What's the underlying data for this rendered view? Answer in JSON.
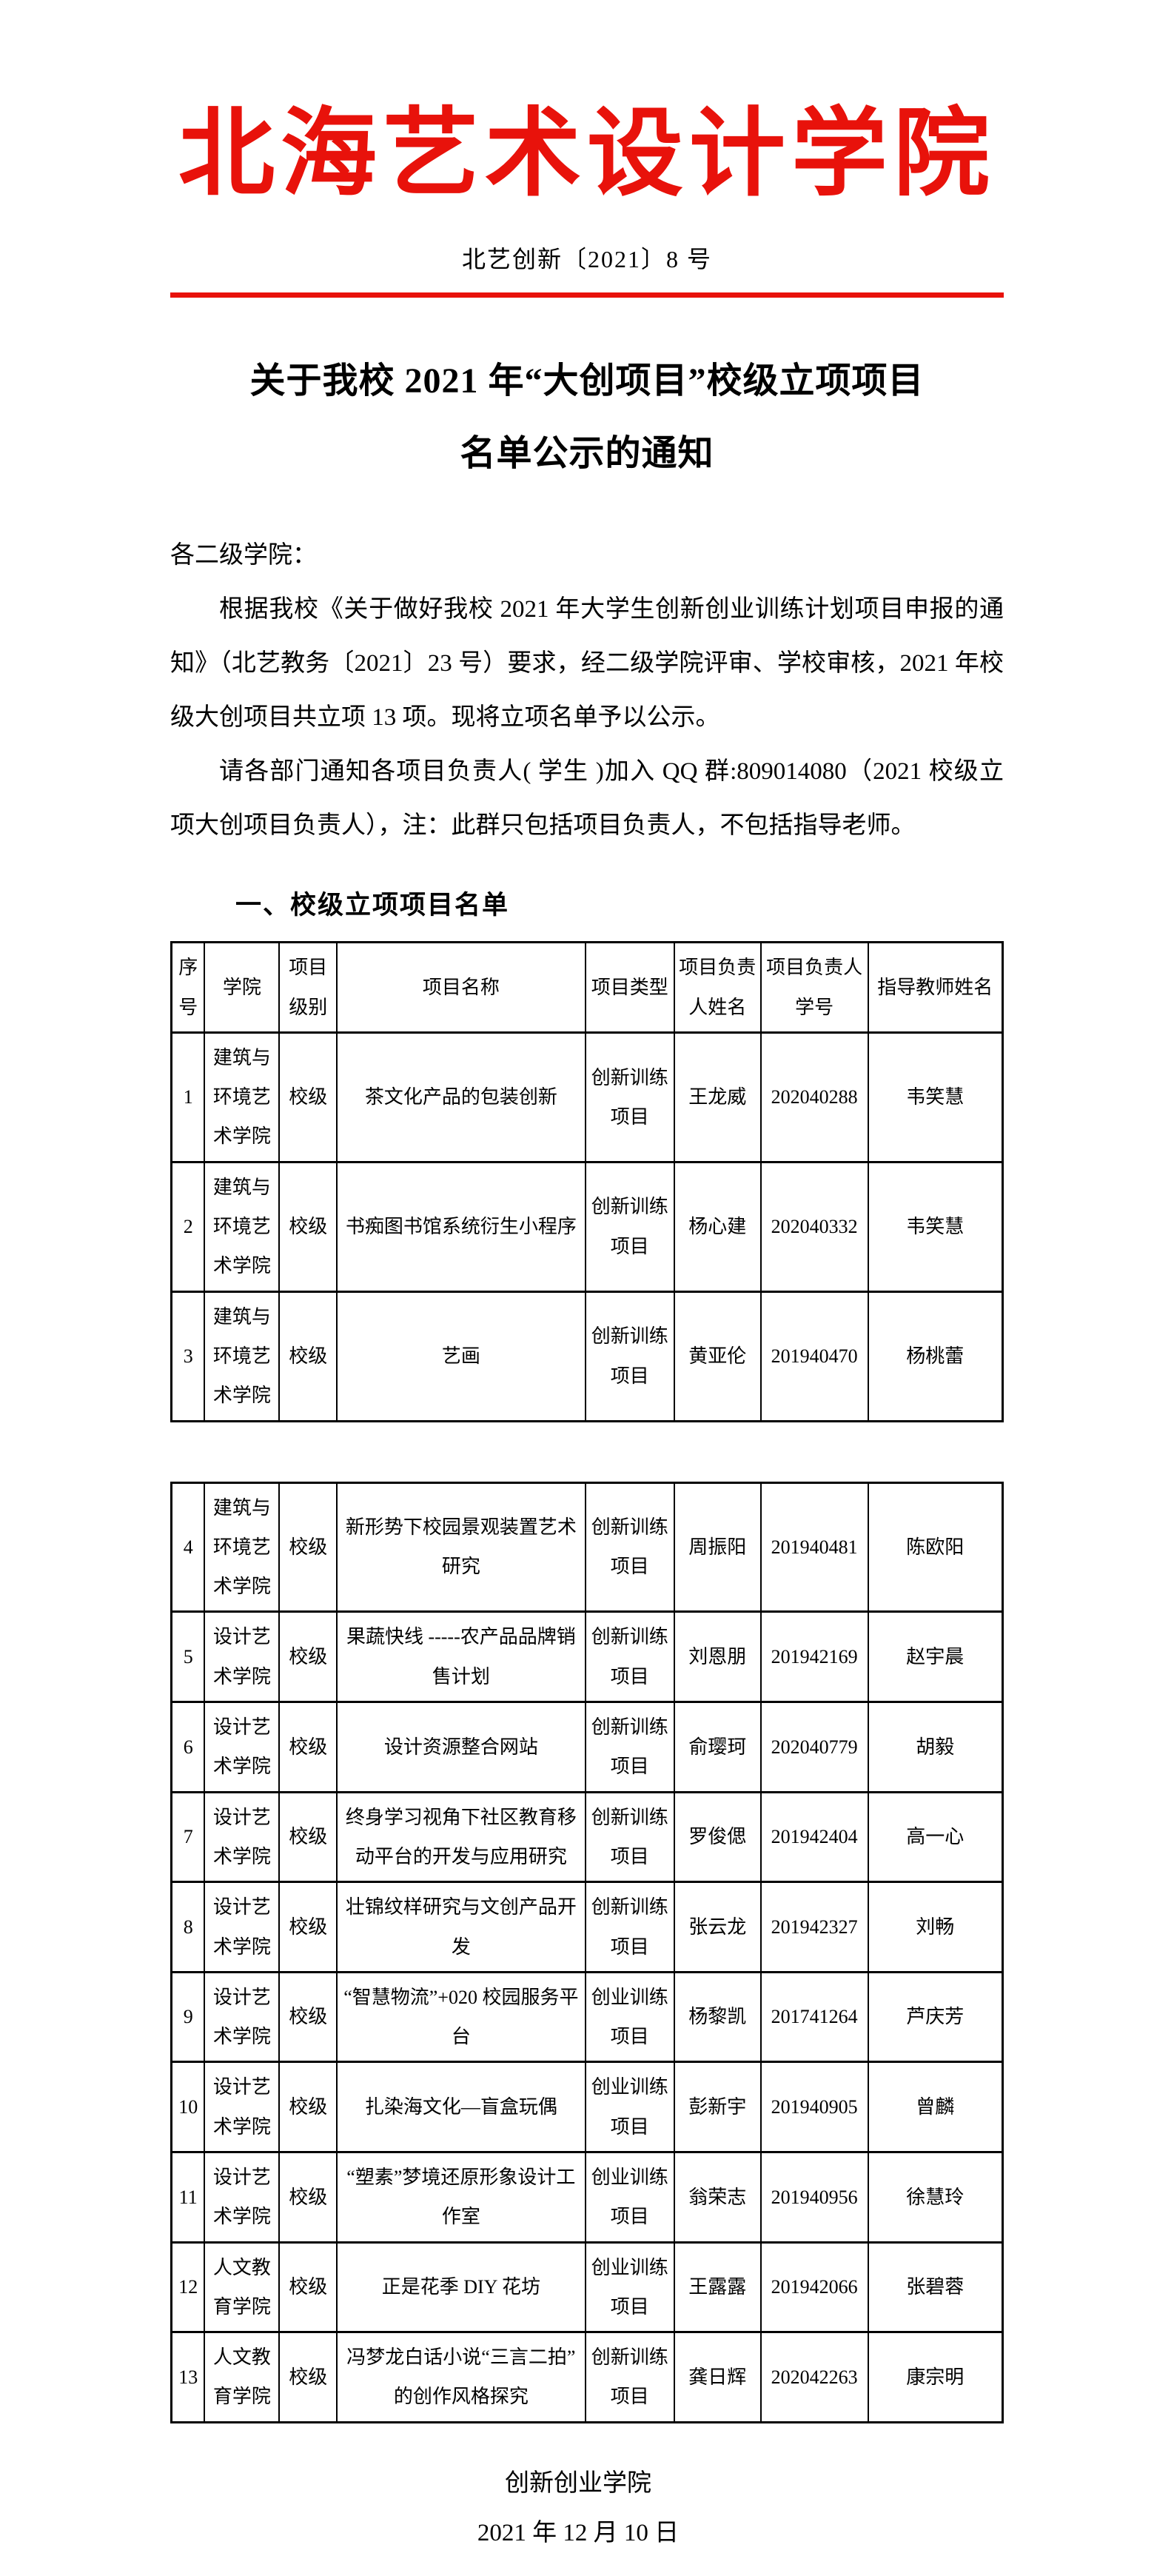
{
  "document": {
    "accent_color": "#e8120b",
    "letterhead": {
      "school_name": "北海艺术设计学院",
      "doc_number": "北艺创新〔2021〕8 号"
    },
    "title": {
      "line1": "关于我校 2021 年“大创项目”校级立项项目",
      "line2": "名单公示的通知"
    },
    "salutation": "各二级学院：",
    "paragraphs": [
      "根据我校《关于做好我校 2021 年大学生创新创业训练计划项目申报的通知》（北艺教务〔2021〕23 号）要求，经二级学院评审、学校审核，2021 年校级大创项目共立项 13 项。现将立项名单予以公示。",
      "请各部门通知各项目负责人( 学生 )加入 QQ 群:809014080（2021 校级立项大创项目负责人），注：此群只包括项目负责人，不包括指导老师。"
    ],
    "section_heading": "一、校级立项项目名单",
    "signature": "创新创业学院",
    "date": "2021 年 12 月 10 日"
  },
  "tables": {
    "col_widths": [
      "4%",
      "9%",
      "6.9%",
      "29.9%",
      "10.7%",
      "10.4%",
      "12.9%",
      "16.2%"
    ],
    "headers": [
      "序号",
      "学院",
      "项目级别",
      "项目名称",
      "项目类型",
      "项目负责人姓名",
      "项目负责人学号",
      "指导教师姓名"
    ],
    "table1": {
      "rows": [
        [
          "1",
          "建筑与环境艺术学院",
          "校级",
          "茶文化产品的包装创新",
          "创新训练项目",
          "王龙威",
          "202040288",
          "韦笑慧"
        ],
        [
          "2",
          "建筑与环境艺术学院",
          "校级",
          "书痴图书馆系统衍生小程序",
          "创新训练项目",
          "杨心建",
          "202040332",
          "韦笑慧"
        ],
        [
          "3",
          "建筑与环境艺术学院",
          "校级",
          "艺画",
          "创新训练项目",
          "黄亚伦",
          "201940470",
          "杨桃蕾"
        ]
      ]
    },
    "table2": {
      "rows": [
        [
          "4",
          "建筑与环境艺术学院",
          "校级",
          "新形势下校园景观装置艺术研究",
          "创新训练项目",
          "周振阳",
          "201940481",
          "陈欧阳"
        ],
        [
          "5",
          "设计艺术学院",
          "校级",
          "果蔬快线 -----农产品品牌销售计划",
          "创新训练项目",
          "刘恩朋",
          "201942169",
          "赵宇晨"
        ],
        [
          "6",
          "设计艺术学院",
          "校级",
          "设计资源整合网站",
          "创新训练项目",
          "俞璎珂",
          "202040779",
          "胡毅"
        ],
        [
          "7",
          "设计艺术学院",
          "校级",
          "终身学习视角下社区教育移动平台的开发与应用研究",
          "创新训练项目",
          "罗俊偲",
          "201942404",
          "高一心"
        ],
        [
          "8",
          "设计艺术学院",
          "校级",
          "壮锦纹样研究与文创产品开发",
          "创新训练项目",
          "张云龙",
          "201942327",
          "刘畅"
        ],
        [
          "9",
          "设计艺术学院",
          "校级",
          "“智慧物流”+020 校园服务平台",
          "创业训练项目",
          "杨黎凯",
          "201741264",
          "芦庆芳"
        ],
        [
          "10",
          "设计艺术学院",
          "校级",
          "扎染海文化—盲盒玩偶",
          "创业训练项目",
          "彭新宇",
          "201940905",
          "曾麟"
        ],
        [
          "11",
          "设计艺术学院",
          "校级",
          "“塑素”梦境还原形象设计工作室",
          "创业训练项目",
          "翁荣志",
          "201940956",
          "徐慧玲"
        ],
        [
          "12",
          "人文教育学院",
          "校级",
          "正是花季 DIY 花坊",
          "创业训练项目",
          "王露露",
          "201942066",
          "张碧蓉"
        ],
        [
          "13",
          "人文教育学院",
          "校级",
          "冯梦龙白话小说“三言二拍”的创作风格探究",
          "创新训练项目",
          "龚日辉",
          "202042263",
          "康宗明"
        ]
      ]
    }
  }
}
